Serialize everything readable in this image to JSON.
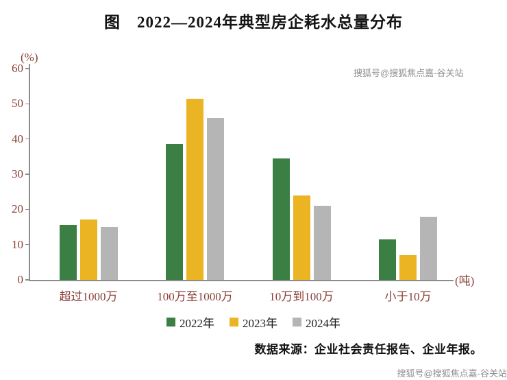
{
  "title": "图　2022—2024年典型房企耗水总量分布",
  "source_note": "数据来源：企业社会责任报告、企业年报。",
  "watermark_top": "搜狐号@搜狐焦点嘉-谷关站",
  "watermark_bottom": "搜狐号@搜狐焦点嘉-谷关站",
  "chart_data": {
    "type": "bar",
    "title": "图 2022—2024年典型房企耗水总量分布",
    "ylabel": "(%)",
    "xlabel": "(吨)",
    "ylim": [
      0,
      60
    ],
    "yticks": [
      0,
      10,
      20,
      30,
      40,
      50,
      60
    ],
    "grid": false,
    "legend_position": "bottom",
    "categories": [
      "超过1000万",
      "100万至1000万",
      "10万到100万",
      "小于10万"
    ],
    "series": [
      {
        "name": "2022年",
        "color": "#3b7f44",
        "values": [
          15.5,
          38.5,
          34.5,
          11.5
        ]
      },
      {
        "name": "2023年",
        "color": "#eab423",
        "values": [
          17.2,
          51.5,
          24,
          7
        ]
      },
      {
        "name": "2024年",
        "color": "#b5b5b5",
        "values": [
          15,
          46,
          21,
          18
        ]
      }
    ]
  }
}
